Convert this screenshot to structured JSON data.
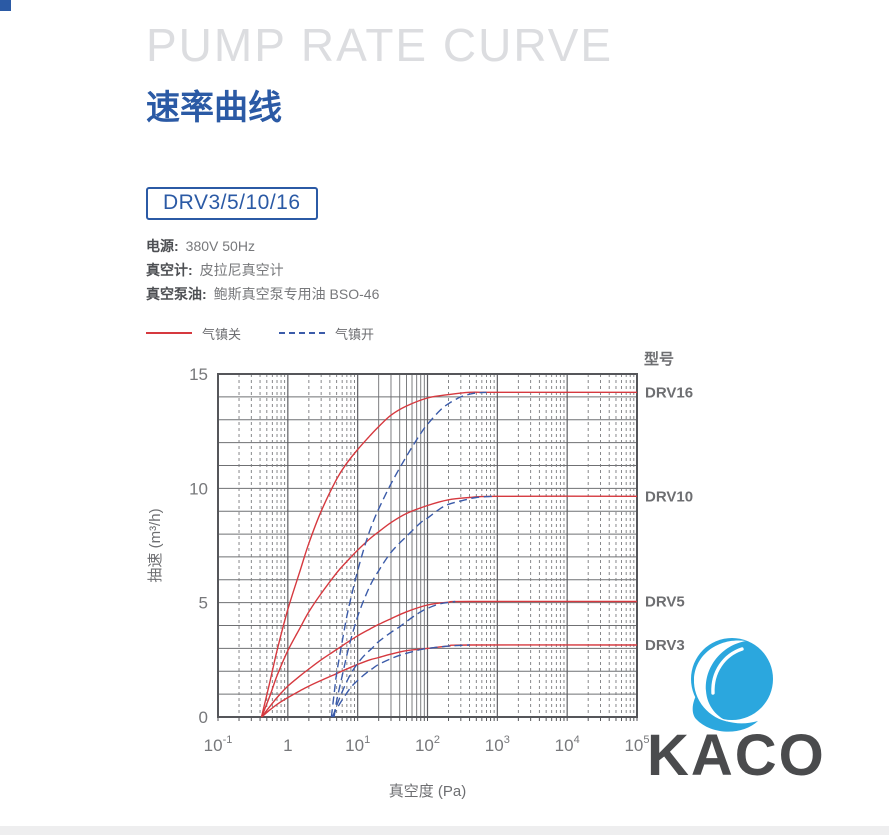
{
  "page": {
    "title_en": "PUMP RATE CURVE",
    "title_zh": "速率曲线",
    "model_badge": "DRV3/5/10/16",
    "specs": [
      {
        "label": "电源:",
        "value": "380V 50Hz"
      },
      {
        "label": "真空计:",
        "value": "皮拉尼真空计"
      },
      {
        "label": "真空泵油:",
        "value": "鲍斯真空泵专用油 BSO-46"
      }
    ],
    "legend": [
      {
        "label": "气镇关",
        "style": "solid",
        "color": "#d6393f"
      },
      {
        "label": "气镇开",
        "style": "dashed",
        "color": "#3b5ba9"
      }
    ],
    "models_header": "型号",
    "brand": "KACO",
    "colors": {
      "accent_blue": "#2b5aa5",
      "title_gray": "#dcdde0",
      "logo_blue": "#2ba7de",
      "brand_text_gray": "#4a4b4d",
      "footer_bar": "#eeeeef",
      "grid_gray": "#6f7073",
      "frame_gray": "#55565a",
      "tick_text_gray": "#77787b"
    }
  },
  "chart_data": {
    "type": "line",
    "title": "",
    "xlabel": "真空度 (Pa)",
    "ylabel": "抽速 (m³/h)",
    "x_scale": "log",
    "xlim": [
      0.1,
      100000
    ],
    "ylim": [
      0,
      15
    ],
    "y_ticks": [
      0,
      5,
      10,
      15
    ],
    "x_ticks": [
      {
        "base": "10",
        "exp": "-1"
      },
      {
        "base": "1",
        "exp": ""
      },
      {
        "base": "10",
        "exp": "1"
      },
      {
        "base": "10",
        "exp": "2"
      },
      {
        "base": "10",
        "exp": "3"
      },
      {
        "base": "10",
        "exp": "4"
      },
      {
        "base": "10",
        "exp": "5"
      }
    ],
    "grid": "log-minor, solid majors, dashed minors (solid minors in decade 10-100)",
    "legend_position": "above-left",
    "curve_labels": [
      {
        "text": "DRV16",
        "y": 14.2
      },
      {
        "text": "DRV10",
        "y": 9.65
      },
      {
        "text": "DRV5",
        "y": 5.05
      },
      {
        "text": "DRV3",
        "y": 3.15
      }
    ],
    "series": [
      {
        "name": "DRV16 气镇关",
        "model": "DRV16",
        "gas_ballast": "closed",
        "color": "#d6393f",
        "dash": false,
        "points": [
          [
            0.42,
            0
          ],
          [
            0.55,
            1.5
          ],
          [
            0.7,
            2.9
          ],
          [
            1,
            4.7
          ],
          [
            1.5,
            6.4
          ],
          [
            2,
            7.6
          ],
          [
            3,
            9.0
          ],
          [
            5,
            10.4
          ],
          [
            7,
            11.1
          ],
          [
            10,
            11.7
          ],
          [
            15,
            12.3
          ],
          [
            20,
            12.7
          ],
          [
            30,
            13.2
          ],
          [
            50,
            13.6
          ],
          [
            100,
            13.95
          ],
          [
            200,
            14.1
          ],
          [
            400,
            14.2
          ],
          [
            1000,
            14.2
          ],
          [
            100000,
            14.2
          ]
        ]
      },
      {
        "name": "DRV10 气镇关",
        "model": "DRV10",
        "gas_ballast": "closed",
        "color": "#d6393f",
        "dash": false,
        "points": [
          [
            0.42,
            0
          ],
          [
            0.55,
            0.9
          ],
          [
            0.7,
            1.8
          ],
          [
            1,
            2.9
          ],
          [
            1.5,
            3.9
          ],
          [
            2,
            4.6
          ],
          [
            3,
            5.4
          ],
          [
            5,
            6.3
          ],
          [
            7,
            6.8
          ],
          [
            10,
            7.3
          ],
          [
            15,
            7.8
          ],
          [
            20,
            8.1
          ],
          [
            30,
            8.5
          ],
          [
            50,
            8.9
          ],
          [
            100,
            9.25
          ],
          [
            200,
            9.5
          ],
          [
            400,
            9.6
          ],
          [
            1000,
            9.65
          ],
          [
            100000,
            9.65
          ]
        ]
      },
      {
        "name": "DRV5 气镇关",
        "model": "DRV5",
        "gas_ballast": "closed",
        "color": "#d6393f",
        "dash": false,
        "points": [
          [
            0.42,
            0
          ],
          [
            0.55,
            0.45
          ],
          [
            0.7,
            0.85
          ],
          [
            1,
            1.35
          ],
          [
            1.5,
            1.8
          ],
          [
            2,
            2.1
          ],
          [
            3,
            2.5
          ],
          [
            5,
            2.95
          ],
          [
            7,
            3.25
          ],
          [
            10,
            3.55
          ],
          [
            15,
            3.85
          ],
          [
            20,
            4.05
          ],
          [
            30,
            4.3
          ],
          [
            50,
            4.6
          ],
          [
            100,
            4.9
          ],
          [
            200,
            5.02
          ],
          [
            400,
            5.05
          ],
          [
            100000,
            5.05
          ]
        ]
      },
      {
        "name": "DRV3 气镇关",
        "model": "DRV3",
        "gas_ballast": "closed",
        "color": "#d6393f",
        "dash": false,
        "points": [
          [
            0.42,
            0
          ],
          [
            0.55,
            0.3
          ],
          [
            0.7,
            0.55
          ],
          [
            1,
            0.85
          ],
          [
            1.5,
            1.15
          ],
          [
            2,
            1.35
          ],
          [
            3,
            1.6
          ],
          [
            5,
            1.9
          ],
          [
            7,
            2.1
          ],
          [
            10,
            2.3
          ],
          [
            15,
            2.5
          ],
          [
            20,
            2.6
          ],
          [
            30,
            2.75
          ],
          [
            50,
            2.9
          ],
          [
            100,
            3.0
          ],
          [
            200,
            3.1
          ],
          [
            400,
            3.15
          ],
          [
            100000,
            3.15
          ]
        ]
      },
      {
        "name": "DRV16 气镇开",
        "model": "DRV16",
        "gas_ballast": "open",
        "color": "#3b5ba9",
        "dash": true,
        "points": [
          [
            4.2,
            0
          ],
          [
            4.6,
            1.0
          ],
          [
            5,
            1.9
          ],
          [
            6,
            3.3
          ],
          [
            7,
            4.4
          ],
          [
            8,
            5.2
          ],
          [
            10,
            6.4
          ],
          [
            13,
            7.6
          ],
          [
            16,
            8.4
          ],
          [
            20,
            9.1
          ],
          [
            30,
            10.2
          ],
          [
            50,
            11.4
          ],
          [
            80,
            12.4
          ],
          [
            100,
            12.8
          ],
          [
            150,
            13.4
          ],
          [
            200,
            13.7
          ],
          [
            300,
            14.0
          ],
          [
            450,
            14.15
          ],
          [
            700,
            14.2
          ]
        ]
      },
      {
        "name": "DRV10 气镇开",
        "model": "DRV10",
        "gas_ballast": "open",
        "color": "#3b5ba9",
        "dash": true,
        "points": [
          [
            4.6,
            0
          ],
          [
            5,
            0.7
          ],
          [
            6,
            1.8
          ],
          [
            7,
            2.7
          ],
          [
            8,
            3.4
          ],
          [
            10,
            4.4
          ],
          [
            13,
            5.3
          ],
          [
            16,
            5.9
          ],
          [
            20,
            6.4
          ],
          [
            30,
            7.2
          ],
          [
            50,
            7.9
          ],
          [
            80,
            8.5
          ],
          [
            100,
            8.7
          ],
          [
            150,
            9.1
          ],
          [
            200,
            9.3
          ],
          [
            300,
            9.45
          ],
          [
            500,
            9.6
          ],
          [
            900,
            9.65
          ]
        ]
      },
      {
        "name": "DRV5 气镇开",
        "model": "DRV5",
        "gas_ballast": "open",
        "color": "#3b5ba9",
        "dash": true,
        "points": [
          [
            4.4,
            0
          ],
          [
            5,
            0.5
          ],
          [
            6,
            1.1
          ],
          [
            7,
            1.55
          ],
          [
            8,
            1.9
          ],
          [
            10,
            2.35
          ],
          [
            13,
            2.75
          ],
          [
            16,
            3.0
          ],
          [
            20,
            3.3
          ],
          [
            30,
            3.7
          ],
          [
            40,
            3.95
          ],
          [
            60,
            4.35
          ],
          [
            80,
            4.6
          ],
          [
            100,
            4.75
          ],
          [
            150,
            4.95
          ],
          [
            250,
            5.05
          ]
        ]
      },
      {
        "name": "DRV3 气镇开",
        "model": "DRV3",
        "gas_ballast": "open",
        "color": "#3b5ba9",
        "dash": true,
        "points": [
          [
            4.3,
            0
          ],
          [
            5,
            0.35
          ],
          [
            6,
            0.75
          ],
          [
            7,
            1.05
          ],
          [
            8,
            1.3
          ],
          [
            10,
            1.6
          ],
          [
            13,
            1.9
          ],
          [
            16,
            2.1
          ],
          [
            20,
            2.3
          ],
          [
            30,
            2.55
          ],
          [
            40,
            2.7
          ],
          [
            60,
            2.85
          ],
          [
            80,
            2.95
          ],
          [
            100,
            3.0
          ],
          [
            200,
            3.1
          ],
          [
            400,
            3.15
          ]
        ]
      }
    ]
  }
}
